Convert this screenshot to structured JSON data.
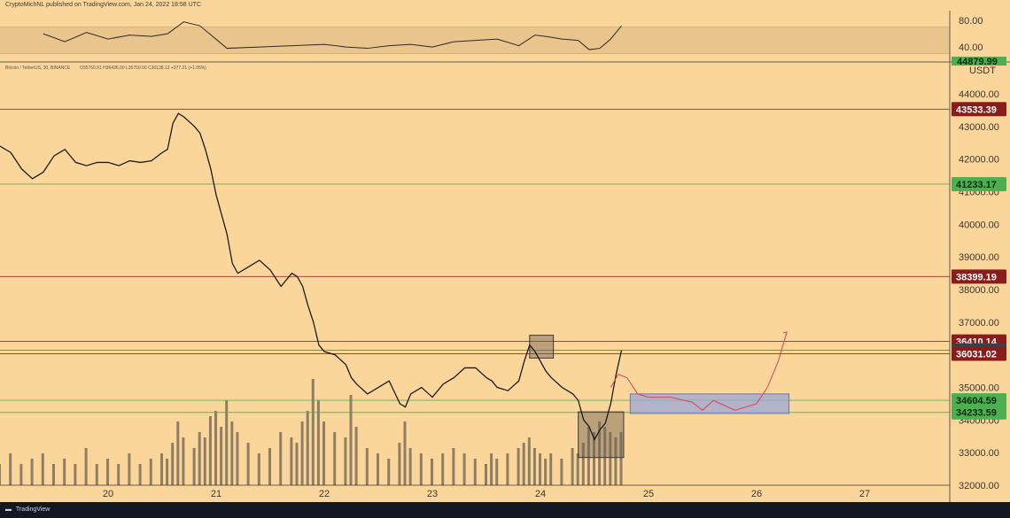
{
  "header": {
    "published_line": "CryptoMichNL published on TradingView.com, Jan 24, 2022 18:58 UTC",
    "symbol_line": "Bitcoin / TetherUS, 30, BINANCE",
    "ohlc_line": "O35760.91  H36436.00  L35750.00  C36138.12  +377.21 (+1.05%)"
  },
  "footer": {
    "logo": "▬",
    "brand": "TradingView"
  },
  "colors": {
    "background": "#fbd69b",
    "resistance": "#8b1c1c",
    "support": "#4caf50",
    "current_price": "#3a3f4a",
    "forecast_path": "#e0405a",
    "target_zone": "#9aa6d8"
  },
  "chart_data": [
    {
      "type": "line",
      "title": "RSI",
      "ylim": [
        20,
        95
      ],
      "y_ticks": [
        80,
        40
      ],
      "y_tick_labels": [
        "80.00",
        "40.00"
      ],
      "band": [
        30,
        70
      ],
      "x": [
        19.4,
        19.6,
        19.8,
        20.0,
        20.2,
        20.4,
        20.55,
        20.7,
        20.85,
        21.1,
        21.4,
        21.7,
        22.0,
        22.2,
        22.4,
        22.6,
        22.8,
        23.0,
        23.2,
        23.4,
        23.6,
        23.8,
        23.95,
        24.05,
        24.2,
        24.35,
        24.45,
        24.55,
        24.65,
        24.75
      ],
      "values": [
        60,
        48,
        62,
        52,
        58,
        56,
        60,
        78,
        72,
        38,
        40,
        42,
        44,
        40,
        38,
        42,
        44,
        40,
        48,
        50,
        52,
        42,
        58,
        56,
        52,
        50,
        36,
        38,
        52,
        72
      ]
    },
    {
      "type": "line",
      "title": "Bitcoin / TetherUS, 30, BINANCE",
      "ylabel": "USDT",
      "x_tick_labels": [
        "20",
        "21",
        "22",
        "23",
        "24",
        "25",
        "26",
        "27"
      ],
      "x_ticks": [
        20,
        21,
        22,
        23,
        24,
        25,
        26,
        27
      ],
      "y_tick_labels": [
        "44000.00",
        "43000.00",
        "42000.00",
        "41000.00",
        "40000.00",
        "39000.00",
        "38000.00",
        "37000.00",
        "36000.00",
        "35000.00",
        "34000.00",
        "33000.00",
        "32000.00"
      ],
      "y_ticks": [
        44000,
        43000,
        42000,
        41000,
        40000,
        39000,
        38000,
        37000,
        36000,
        35000,
        34000,
        33000,
        32000
      ],
      "ylim": [
        32000,
        44600
      ],
      "series": [
        {
          "name": "",
          "x": [
            19.0,
            19.1,
            19.2,
            19.3,
            19.4,
            19.5,
            19.6,
            19.7,
            19.8,
            19.9,
            20.0,
            20.1,
            20.2,
            20.3,
            20.4,
            20.5,
            20.55,
            20.6,
            20.65,
            20.7,
            20.8,
            20.85,
            20.9,
            20.95,
            21.0,
            21.05,
            21.1,
            21.15,
            21.2,
            21.3,
            21.4,
            21.5,
            21.6,
            21.7,
            21.75,
            21.8,
            21.85,
            21.9,
            21.95,
            22.0,
            22.1,
            22.2,
            22.25,
            22.3,
            22.4,
            22.5,
            22.6,
            22.7,
            22.75,
            22.8,
            22.9,
            23.0,
            23.1,
            23.2,
            23.3,
            23.4,
            23.5,
            23.55,
            23.6,
            23.7,
            23.8,
            23.85,
            23.9,
            23.95,
            24.0,
            24.05,
            24.1,
            24.2,
            24.3,
            24.35,
            24.4,
            24.45,
            24.5,
            24.55,
            24.6,
            24.65,
            24.7,
            24.75
          ],
          "values": [
            42400,
            42200,
            41700,
            41400,
            41600,
            42100,
            42300,
            41900,
            41800,
            41900,
            41900,
            41800,
            41950,
            41900,
            41950,
            42200,
            42300,
            43100,
            43400,
            43300,
            43000,
            42800,
            42300,
            41700,
            40900,
            40300,
            39700,
            38800,
            38500,
            38700,
            38900,
            38600,
            38100,
            38500,
            38400,
            38100,
            37500,
            37000,
            36300,
            36100,
            36000,
            35700,
            35300,
            35100,
            34800,
            35000,
            35200,
            34500,
            34400,
            34800,
            35000,
            34700,
            35100,
            35300,
            35600,
            35600,
            35300,
            35200,
            35000,
            34900,
            35200,
            35800,
            36300,
            36100,
            35800,
            35500,
            35300,
            35000,
            34800,
            34600,
            34000,
            33800,
            33400,
            33700,
            33900,
            34500,
            35400,
            36138
          ]
        }
      ],
      "volume": [
        0.2,
        0.3,
        0.2,
        0.25,
        0.3,
        0.2,
        0.25,
        0.2,
        0.35,
        0.2,
        0.25,
        0.2,
        0.3,
        0.2,
        0.25,
        0.3,
        0.25,
        0.4,
        0.6,
        0.45,
        0.35,
        0.5,
        0.45,
        0.65,
        0.7,
        0.55,
        0.8,
        0.6,
        0.5,
        0.4,
        0.3,
        0.35,
        0.5,
        0.45,
        0.4,
        0.6,
        0.7,
        1.0,
        0.8,
        0.6,
        0.5,
        0.45,
        0.85,
        0.55,
        0.35,
        0.3,
        0.25,
        0.4,
        0.6,
        0.35,
        0.3,
        0.25,
        0.3,
        0.35,
        0.3,
        0.25,
        0.2,
        0.3,
        0.25,
        0.3,
        0.35,
        0.4,
        0.45,
        0.35,
        0.3,
        0.25,
        0.3,
        0.25,
        0.35,
        0.3,
        0.4,
        0.55,
        0.5,
        0.6,
        0.55,
        0.5,
        0.45,
        0.5
      ],
      "levels": [
        {
          "value": 43533.39,
          "label": "43533.39",
          "kind": "resistance"
        },
        {
          "value": 41233.17,
          "label": "41233.17",
          "kind": "support"
        },
        {
          "value": 38399.19,
          "label": "38399.19",
          "kind": "resistance"
        },
        {
          "value": 36410.14,
          "label": "36410.14",
          "kind": "resistance"
        },
        {
          "value": 36138.12,
          "label": "36138.12",
          "kind": "current"
        },
        {
          "value": 36031.02,
          "label": "36031.02",
          "kind": "resistance"
        },
        {
          "value": 34604.59,
          "label": "34604.59",
          "kind": "support"
        },
        {
          "value": 34233.59,
          "label": "34233.59",
          "kind": "support"
        }
      ],
      "top_clipped_label": "44879.99",
      "highlight_boxes": [
        {
          "x": [
            23.9,
            24.12
          ],
          "y": [
            35900,
            36600
          ]
        },
        {
          "x": [
            24.35,
            24.77
          ],
          "y": [
            32850,
            34250
          ]
        }
      ],
      "target_zone": {
        "x": [
          24.83,
          26.3
        ],
        "y": [
          34200,
          34800
        ]
      },
      "forecast_path": {
        "x": [
          24.65,
          24.72,
          24.8,
          24.9,
          25.0,
          25.2,
          25.4,
          25.5,
          25.6,
          25.8,
          26.0,
          26.1,
          26.2,
          26.28
        ],
        "values": [
          35000,
          35400,
          35300,
          34800,
          34700,
          34700,
          34550,
          34300,
          34600,
          34300,
          34500,
          35000,
          35800,
          36700
        ]
      }
    }
  ]
}
